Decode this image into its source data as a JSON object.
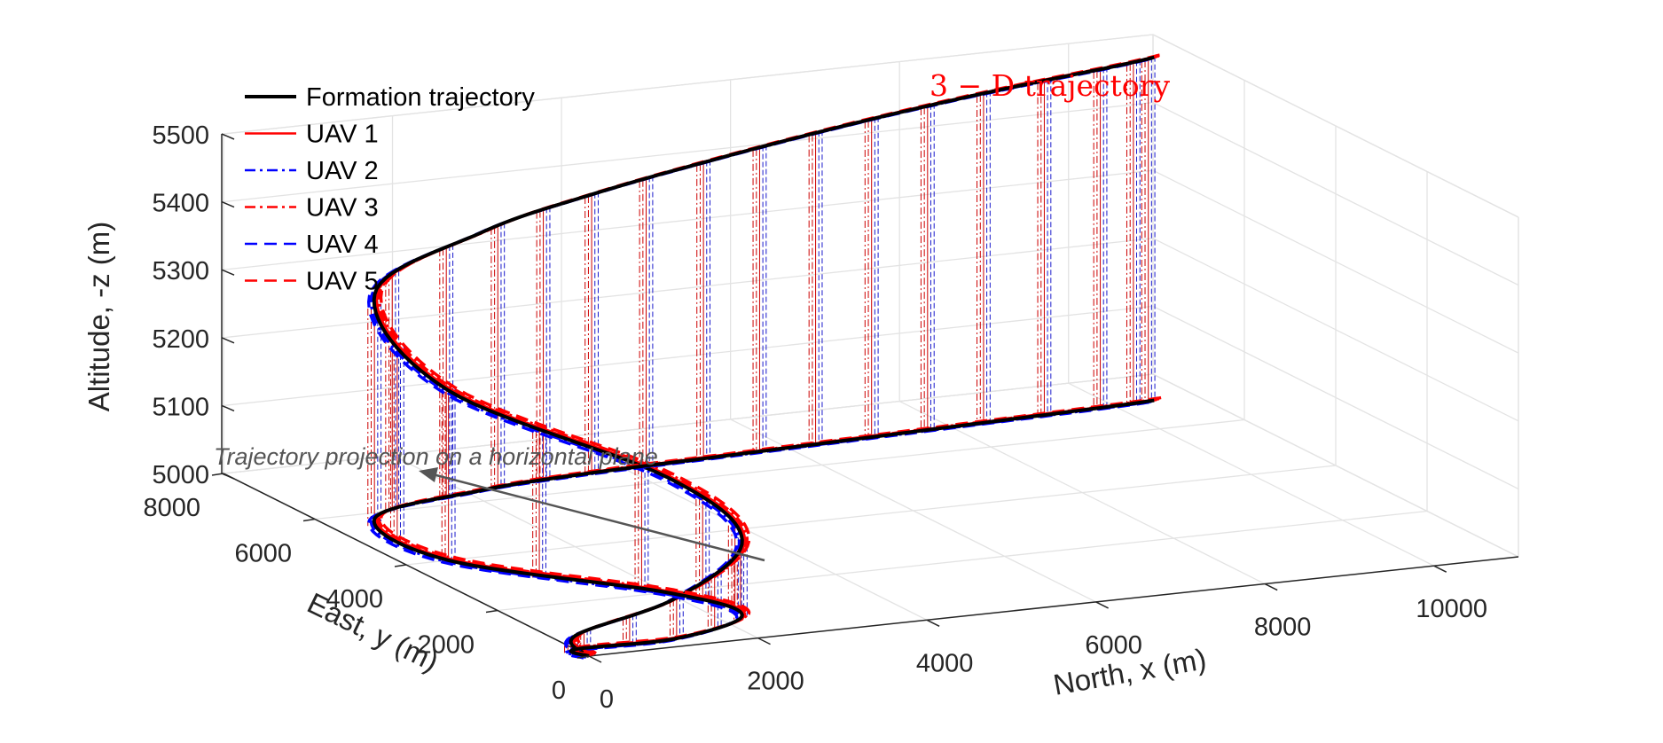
{
  "chart_data": {
    "type": "line",
    "title": "3 − D trajectory",
    "xlabel": "North, x (m)",
    "ylabel": "East, y (m)",
    "zlabel": "Altitude, -z (m)",
    "xlim": [
      0,
      11000
    ],
    "ylim": [
      0,
      8000
    ],
    "zlim": [
      5000,
      5500
    ],
    "x_ticks": [
      "0",
      "2000",
      "4000",
      "6000",
      "8000",
      "10000"
    ],
    "y_ticks": [
      "0",
      "2000",
      "4000",
      "6000",
      "8000"
    ],
    "z_ticks": [
      "5000",
      "5100",
      "5200",
      "5300",
      "5400",
      "5500"
    ],
    "grid": true,
    "legend_position": "top-left",
    "annotation": "Trajectory projection on a horizontal plane",
    "series": [
      {
        "name": "Formation trajectory",
        "color": "#000000",
        "style": "solid"
      },
      {
        "name": "UAV 1",
        "color": "#ff0000",
        "style": "solid"
      },
      {
        "name": "UAV 2",
        "color": "#0000ff",
        "style": "dash-dot"
      },
      {
        "name": "UAV 3",
        "color": "#ff0000",
        "style": "dash-dot"
      },
      {
        "name": "UAV 4",
        "color": "#0000ff",
        "style": "dashed"
      },
      {
        "name": "UAV 5",
        "color": "#ff0000",
        "style": "dashed"
      }
    ],
    "trajectory": {
      "x": [
        0,
        0,
        1200,
        2300,
        2000,
        500,
        600,
        2200,
        3600,
        5200,
        6800,
        8400,
        10000,
        10500
      ],
      "y": [
        0,
        300,
        300,
        900,
        2000,
        4000,
        5800,
        6400,
        6600,
        6700,
        6800,
        6900,
        7000,
        7050
      ],
      "z": [
        5000,
        5020,
        5060,
        5110,
        5170,
        5250,
        5330,
        5380,
        5410,
        5440,
        5465,
        5485,
        5500,
        5505
      ]
    }
  }
}
